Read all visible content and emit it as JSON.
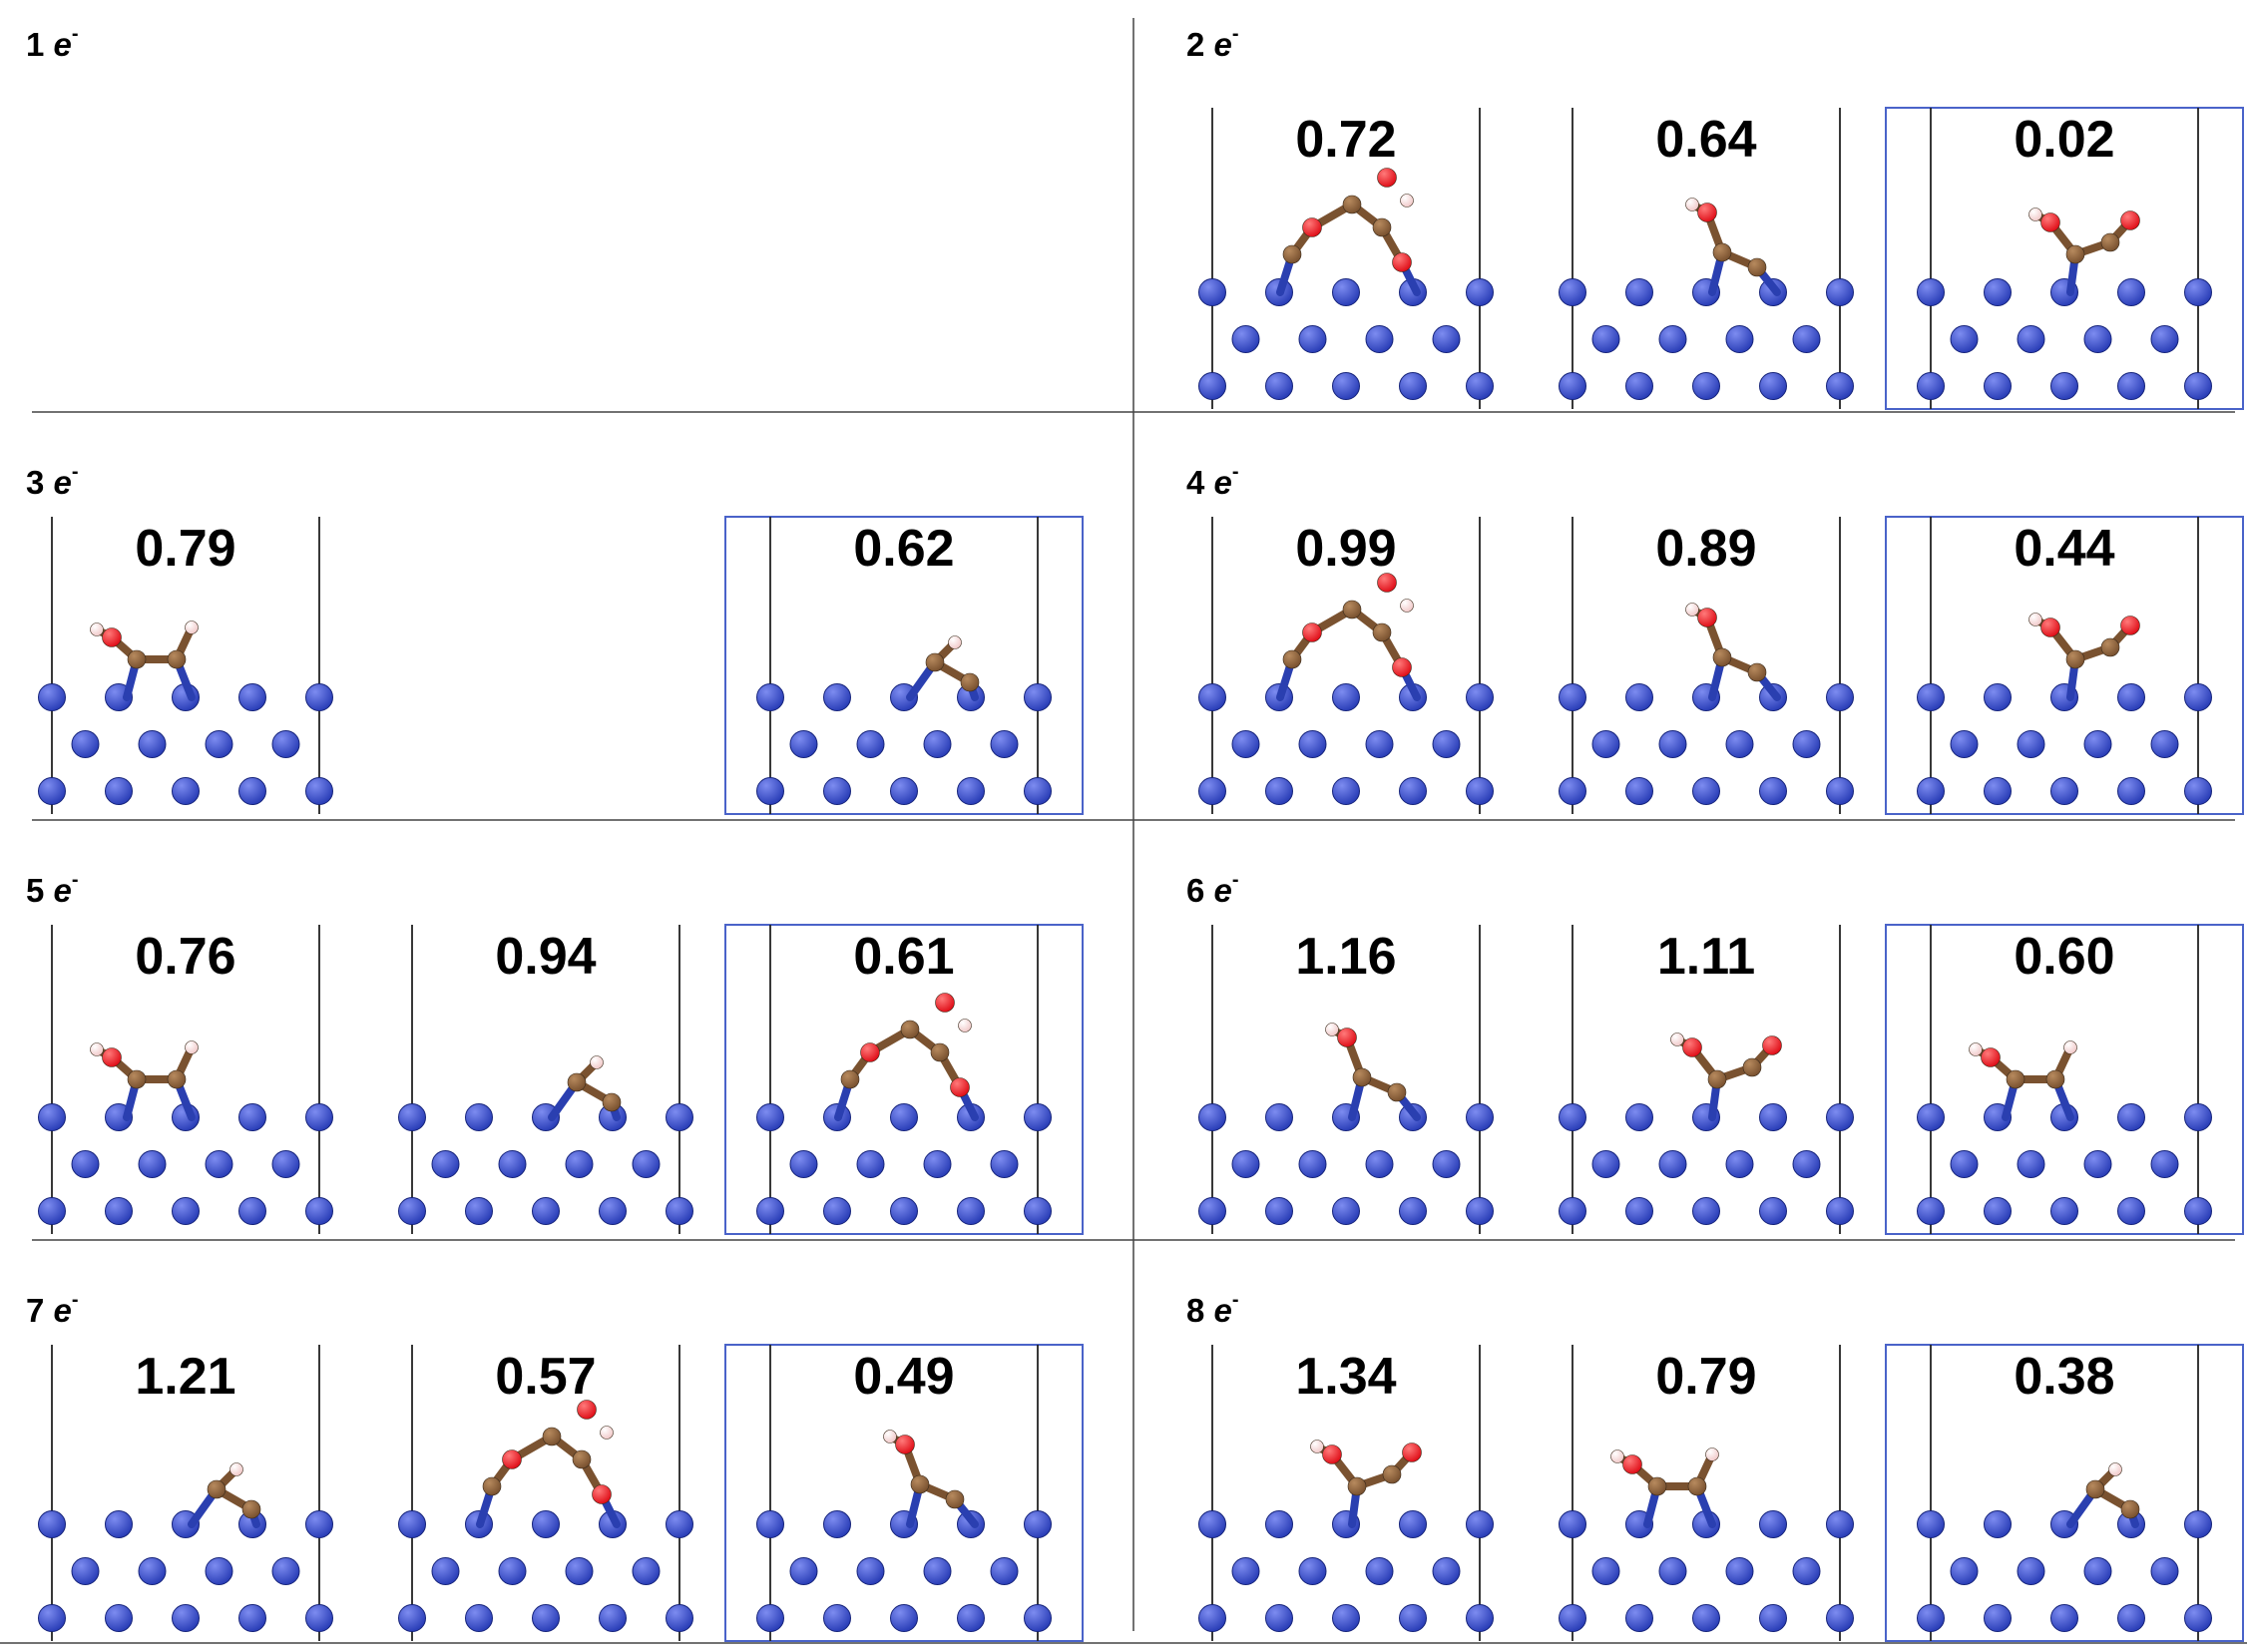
{
  "colors": {
    "surface_atom": "#2b3fb8",
    "carbon": "#7a5230",
    "oxygen": "#e0101a",
    "hydrogen": "#f1caca",
    "bond_to_surface": "#2a3fb0",
    "selected_box": "#4a63c9",
    "cell_line": "#222222"
  },
  "electron_symbol": "e",
  "electron_superscript": "-",
  "rows": [
    {
      "left": {
        "label": "1",
        "panels": []
      },
      "right": {
        "label": "2",
        "panels": [
          {
            "value": "0.72",
            "selected": false
          },
          {
            "value": "0.64",
            "selected": false
          },
          {
            "value": "0.02",
            "selected": true
          }
        ]
      }
    },
    {
      "left": {
        "label": "3",
        "panels": [
          {
            "value": "0.79",
            "selected": false
          },
          null,
          {
            "value": "0.62",
            "selected": true
          }
        ]
      },
      "right": {
        "label": "4",
        "panels": [
          {
            "value": "0.99",
            "selected": false
          },
          {
            "value": "0.89",
            "selected": false
          },
          {
            "value": "0.44",
            "selected": true
          }
        ]
      }
    },
    {
      "left": {
        "label": "5",
        "panels": [
          {
            "value": "0.76",
            "selected": false
          },
          {
            "value": "0.94",
            "selected": false
          },
          {
            "value": "0.61",
            "selected": true
          }
        ]
      },
      "right": {
        "label": "6",
        "panels": [
          {
            "value": "1.16",
            "selected": false
          },
          {
            "value": "1.11",
            "selected": false
          },
          {
            "value": "0.60",
            "selected": true
          }
        ]
      }
    },
    {
      "left": {
        "label": "7",
        "panels": [
          {
            "value": "1.21",
            "selected": false
          },
          {
            "value": "0.57",
            "selected": false
          },
          {
            "value": "0.49",
            "selected": true
          }
        ]
      },
      "right": {
        "label": "8",
        "panels": [
          {
            "value": "1.34",
            "selected": false
          },
          {
            "value": "0.79",
            "selected": false
          },
          {
            "value": "0.38",
            "selected": true
          }
        ]
      }
    }
  ]
}
